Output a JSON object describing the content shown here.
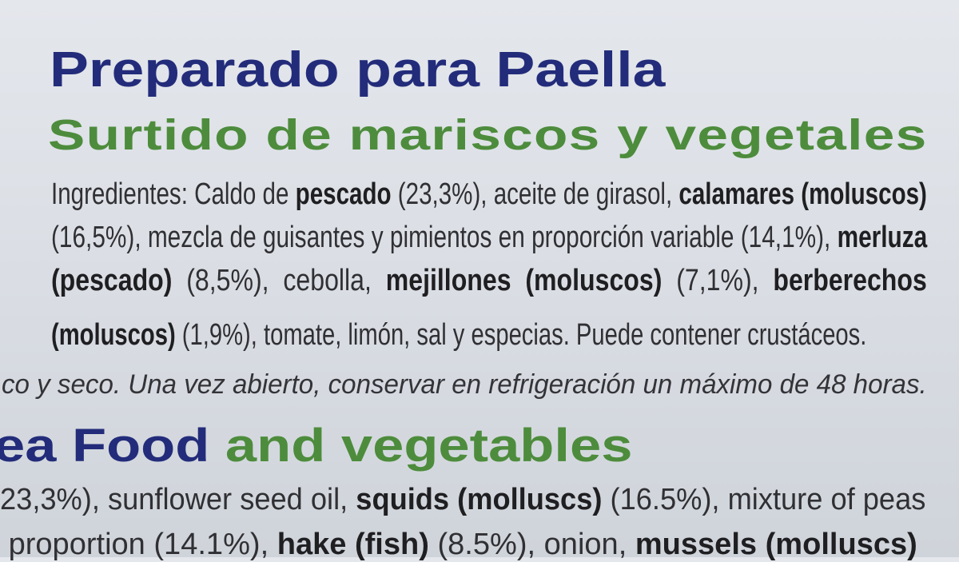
{
  "label": {
    "title": "Preparado para Paella",
    "subtitle": "Surtido de mariscos y vegetales",
    "ingredients_lines": [
      [
        {
          "t": "Ingredientes: Caldo de ",
          "b": false
        },
        {
          "t": "pescado",
          "b": true
        },
        {
          "t": " (23,3%), aceite de girasol, ",
          "b": false
        },
        {
          "t": "calamares (moluscos)",
          "b": true
        }
      ],
      [
        {
          "t": "(16,5%), mezcla de guisantes y pimientos en proporción variable (14,1%), ",
          "b": false
        },
        {
          "t": "merluza",
          "b": true
        }
      ],
      [
        {
          "t": "(pescado)",
          "b": true
        },
        {
          "t": "  (8,5%),  cebolla,  ",
          "b": false
        },
        {
          "t": "mejillones  (moluscos)",
          "b": true
        },
        {
          "t": "  (7,1%),  ",
          "b": false
        },
        {
          "t": "berberechos",
          "b": true
        }
      ],
      [
        {
          "t": "(moluscos)",
          "b": true
        },
        {
          "t": " (1,9%), tomate, limón, sal y especias. Puede contener crustáceos.",
          "b": false
        }
      ]
    ],
    "storage_text": "co y seco. Una vez abierto, conservar en refrigeración un máximo de 48 horas.",
    "english_title_part1": "ea Food",
    "english_title_part2": " and vegetables",
    "english_lines": [
      [
        {
          "t": "23,3%), sunflower seed oil, ",
          "b": false
        },
        {
          "t": "squids (molluscs)",
          "b": true
        },
        {
          "t": " (16.5%), mixture of peas",
          "b": false
        }
      ],
      [
        {
          "t": " proportion (14.1%), ",
          "b": false
        },
        {
          "t": "hake (fish)",
          "b": true
        },
        {
          "t": " (8.5%), onion, ",
          "b": false
        },
        {
          "t": "mussels (molluscs)",
          "b": true
        }
      ]
    ],
    "colors": {
      "title": "#232c7a",
      "subtitle": "#4d8c3c",
      "text": "#303034",
      "background": "#dadee4"
    }
  }
}
